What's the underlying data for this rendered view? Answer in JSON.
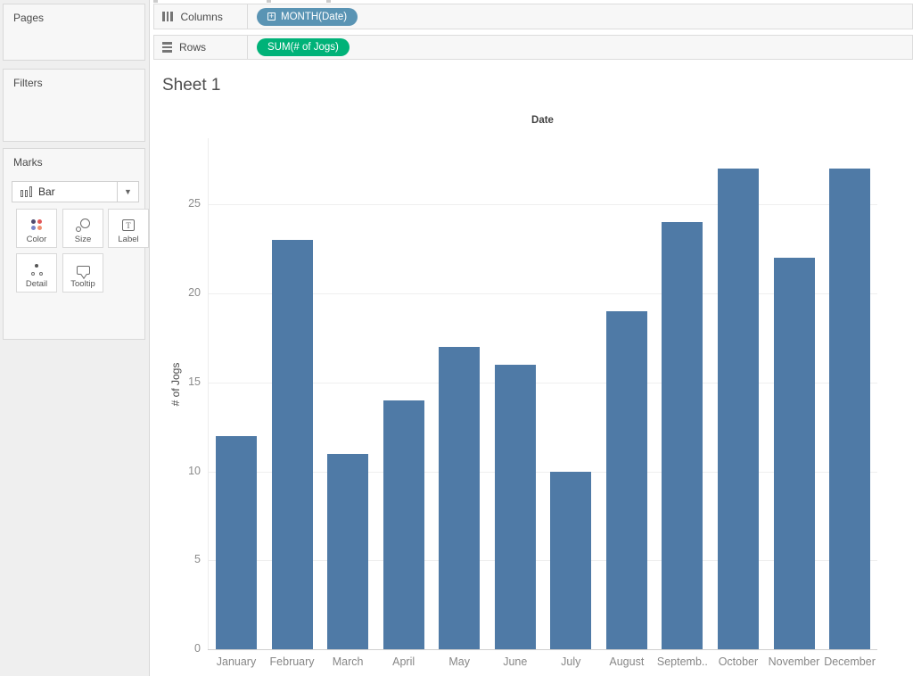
{
  "shelves": {
    "columns": {
      "label": "Columns",
      "pill": "MONTH(Date)",
      "pill_color": "#5a94b4"
    },
    "rows": {
      "label": "Rows",
      "pill": "SUM(# of Jogs)",
      "pill_color": "#00b278"
    },
    "pill_expand_glyph": "+"
  },
  "sidebar": {
    "pages_title": "Pages",
    "filters_title": "Filters",
    "marks": {
      "title": "Marks",
      "mark_type": "Bar",
      "dropdown_arrow": "▼",
      "buttons": [
        {
          "label": "Color",
          "icon": "color-icon"
        },
        {
          "label": "Size",
          "icon": "size-icon"
        },
        {
          "label": "Label",
          "icon": "label-icon"
        },
        {
          "label": "Detail",
          "icon": "detail-icon"
        },
        {
          "label": "Tooltip",
          "icon": "tooltip-icon"
        }
      ],
      "color_icon_dots": [
        "#4f4a6f",
        "#e15759",
        "#7b85c9",
        "#ef8e6f"
      ]
    }
  },
  "sheet": {
    "title": "Sheet 1"
  },
  "chart_data": {
    "type": "bar",
    "title": "Date",
    "xlabel": "",
    "ylabel": "# of Jogs",
    "categories": [
      "January",
      "February",
      "March",
      "April",
      "May",
      "June",
      "July",
      "August",
      "September",
      "October",
      "November",
      "December"
    ],
    "x_display_labels": [
      "January",
      "February",
      "March",
      "April",
      "May",
      "June",
      "July",
      "August",
      "Septemb..",
      "October",
      "November",
      "December"
    ],
    "values": [
      12,
      23,
      11,
      14,
      17,
      16,
      10,
      19,
      24,
      27,
      22,
      27
    ],
    "yticks": [
      0,
      5,
      10,
      15,
      20,
      25
    ],
    "ylim": [
      0,
      28.7
    ],
    "bar_color": "#4f7aa6",
    "grid": true,
    "legend": "none"
  }
}
